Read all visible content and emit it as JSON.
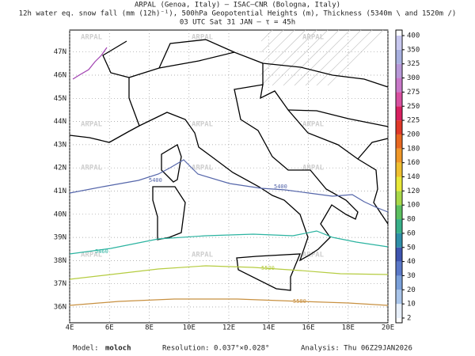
{
  "header": {
    "lines": [
      "ARPAL (Genoa, Italy)  –  ISAC–CNR (Bologna, Italy)",
      "12h water eq. snow fall (mm (12h)⁻¹), 500hPa Geopotential Heights (m), Thickness (5340m \\ and 1520m /)",
      "03 UTC Sat 31 JAN  –  τ = 45h"
    ]
  },
  "map": {
    "lat_labels": [
      "36N",
      "37N",
      "38N",
      "39N",
      "40N",
      "41N",
      "42N",
      "43N",
      "44N",
      "45N",
      "46N",
      "47N"
    ],
    "lon_labels": [
      "4E",
      "6E",
      "8E",
      "10E",
      "12E",
      "14E",
      "16E",
      "18E",
      "20E"
    ],
    "watermark": "ARPAL",
    "contour_labels": [
      "5400",
      "5400",
      "5460",
      "5520",
      "5580"
    ]
  },
  "colorbar": {
    "levels": [
      2,
      10,
      20,
      30,
      40,
      50,
      60,
      80,
      100,
      120,
      140,
      160,
      180,
      200,
      225,
      250,
      275,
      300,
      325,
      350,
      400
    ],
    "colors": [
      "#e8f0fa",
      "#a9c5ea",
      "#7aa0da",
      "#5a78c8",
      "#3f55b0",
      "#2f8fa8",
      "#38b08a",
      "#5cc060",
      "#a8d848",
      "#e8e838",
      "#f0c030",
      "#f09828",
      "#e86820",
      "#e03828",
      "#d82060",
      "#d850a0",
      "#c878c8",
      "#b898d8",
      "#a8b0e0",
      "#c8c8f0"
    ]
  },
  "footer": {
    "model_label": "Model:",
    "model": "moloch",
    "resolution": "Resolution: 0.037°×0.028°",
    "analysis": "Analysis: Thu 06Z29JAN2026"
  }
}
